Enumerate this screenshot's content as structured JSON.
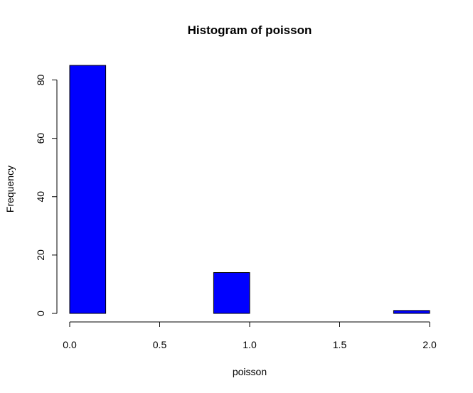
{
  "chart_data": {
    "type": "bar",
    "title": "Histogram of poisson",
    "xlabel": "poisson",
    "ylabel": "Frequency",
    "bins": [
      {
        "start": 0.0,
        "end": 0.2,
        "count": 85
      },
      {
        "start": 0.2,
        "end": 0.4,
        "count": 0
      },
      {
        "start": 0.4,
        "end": 0.6,
        "count": 0
      },
      {
        "start": 0.6,
        "end": 0.8,
        "count": 0
      },
      {
        "start": 0.8,
        "end": 1.0,
        "count": 14
      },
      {
        "start": 1.0,
        "end": 1.2,
        "count": 0
      },
      {
        "start": 1.2,
        "end": 1.4,
        "count": 0
      },
      {
        "start": 1.4,
        "end": 1.6,
        "count": 0
      },
      {
        "start": 1.6,
        "end": 1.8,
        "count": 0
      },
      {
        "start": 1.8,
        "end": 2.0,
        "count": 1
      }
    ],
    "xlim": [
      0,
      2
    ],
    "ylim": [
      0,
      85
    ],
    "xticks": [
      "0.0",
      "0.5",
      "1.0",
      "1.5",
      "2.0"
    ],
    "xtick_values": [
      0,
      0.5,
      1.0,
      1.5,
      2.0
    ],
    "yticks": [
      "0",
      "20",
      "40",
      "60",
      "80"
    ],
    "ytick_values": [
      0,
      20,
      40,
      60,
      80
    ],
    "bar_color": "#0000ff",
    "grid": false,
    "legend": "none"
  }
}
